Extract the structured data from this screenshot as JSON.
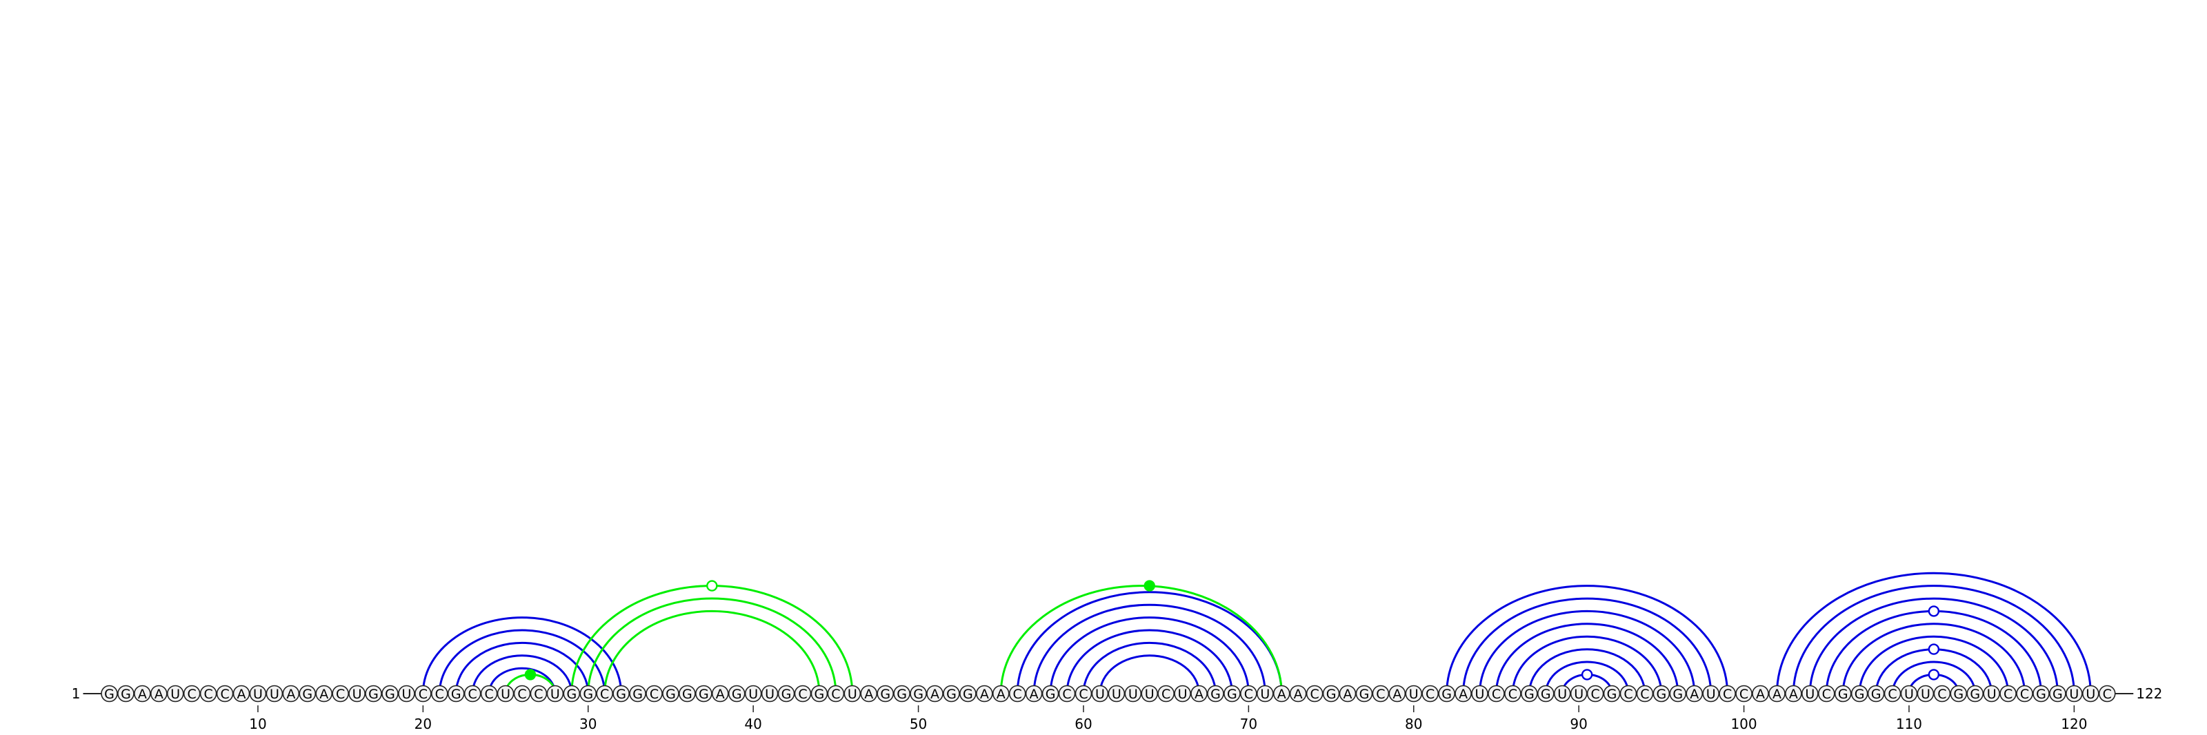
{
  "sequence": {
    "start_label": "1",
    "end_label": "122",
    "bases": "GGAAUCCCAUUAGACUGGUCCGCCUCCUGGCGGCGGGAGUUGCGCUAGGGAGGAACAGCCUUUUCUAGGCUAACGAGCAUCGAUCCGGUUCGCCGGAUCCAAAUCGGGCUUCGGUCCGGUUC"
  },
  "axis": {
    "ticks": [
      10,
      20,
      30,
      40,
      50,
      60,
      70,
      80,
      90,
      100,
      110,
      120
    ]
  },
  "colors": {
    "helix": "#0000e0",
    "pseudoknot": "#00ee00",
    "base_fill": "#f2f2f2",
    "base_stroke": "#222222",
    "text": "#000000"
  },
  "arcs": {
    "blue": [
      [
        20,
        32
      ],
      [
        21,
        31
      ],
      [
        22,
        30
      ],
      [
        23,
        29
      ],
      [
        24,
        28
      ],
      [
        56,
        72
      ],
      [
        57,
        71
      ],
      [
        58,
        70
      ],
      [
        59,
        69
      ],
      [
        60,
        68
      ],
      [
        61,
        67
      ],
      [
        82,
        99
      ],
      [
        83,
        98
      ],
      [
        84,
        97
      ],
      [
        85,
        96
      ],
      [
        86,
        95
      ],
      [
        87,
        94
      ],
      [
        88,
        93
      ],
      [
        89,
        92
      ],
      [
        102,
        121
      ],
      [
        103,
        120
      ],
      [
        104,
        119
      ],
      [
        105,
        118
      ],
      [
        106,
        117
      ],
      [
        107,
        116
      ],
      [
        108,
        115
      ],
      [
        109,
        114
      ],
      [
        110,
        113
      ]
    ],
    "green": [
      [
        25,
        28
      ],
      [
        29,
        46
      ],
      [
        30,
        45
      ],
      [
        31,
        44
      ],
      [
        55,
        72
      ]
    ]
  },
  "markers": [
    {
      "pos": 26.5,
      "arc_span": 3,
      "color": "green",
      "filled": true
    },
    {
      "pos": 37.5,
      "arc_span": 17,
      "color": "green",
      "filled": false
    },
    {
      "pos": 64,
      "arc_span": 17,
      "color": "green",
      "filled": true
    },
    {
      "pos": 90.5,
      "arc_span": 3,
      "color": "blue",
      "filled": false
    },
    {
      "pos": 111.5,
      "arc_span": 3,
      "color": "blue",
      "filled": false
    },
    {
      "pos": 111.5,
      "arc_span": 7,
      "color": "blue",
      "filled": false
    },
    {
      "pos": 111.5,
      "arc_span": 13,
      "color": "blue",
      "filled": false
    }
  ]
}
